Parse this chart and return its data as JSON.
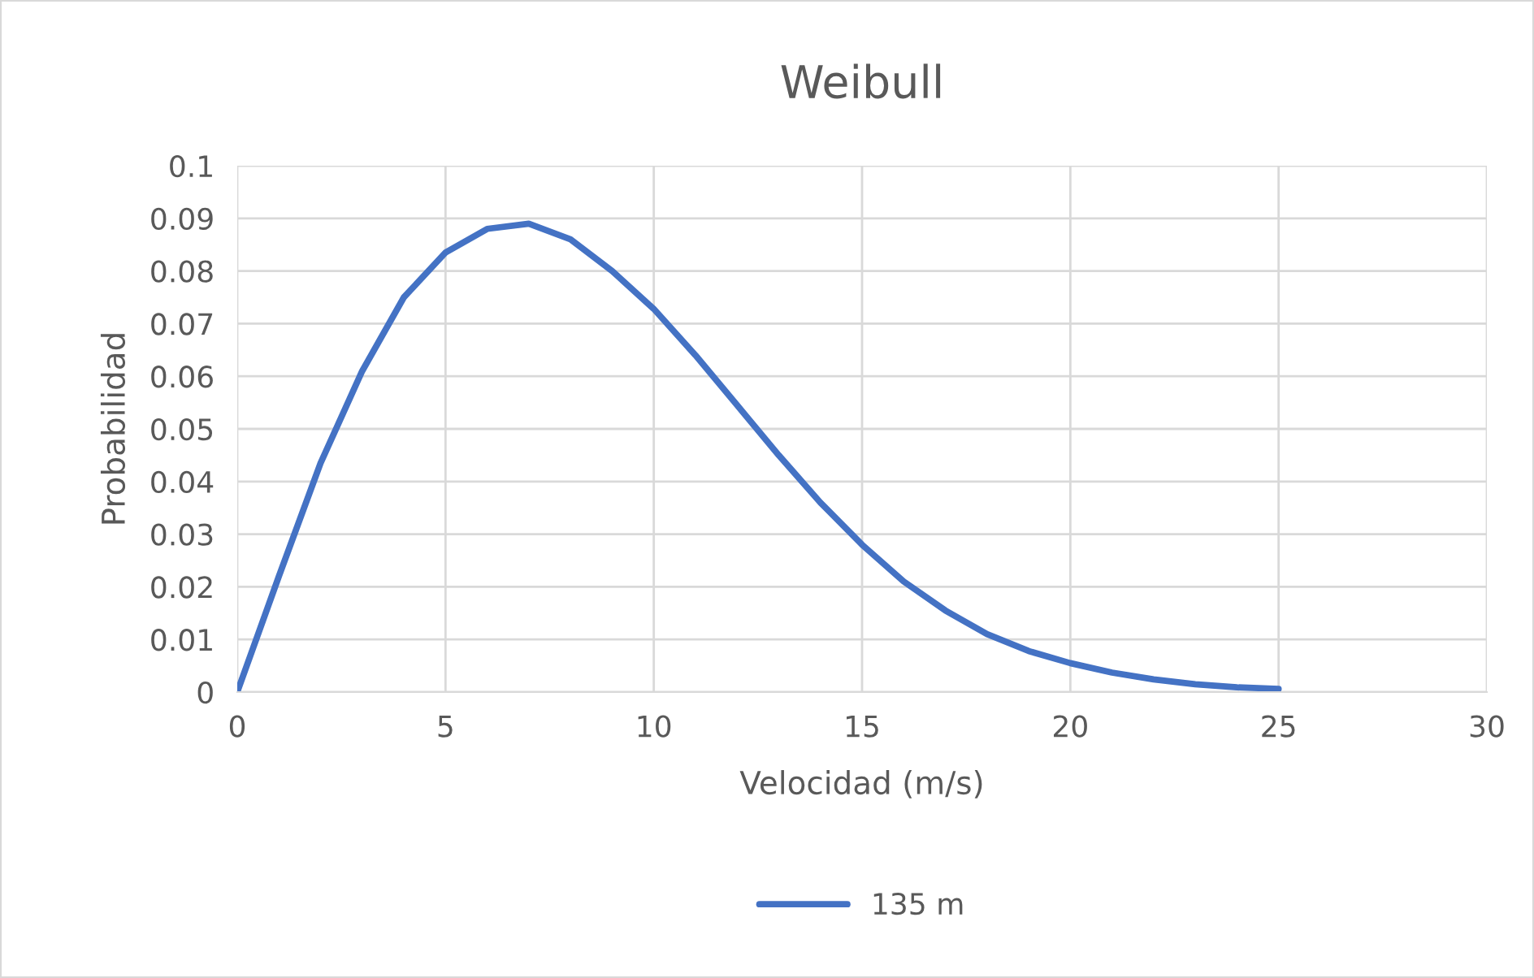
{
  "chart_data": {
    "type": "line",
    "title": "Weibull",
    "xlabel": "Velocidad (m/s)",
    "ylabel": "Probabilidad",
    "x": [
      0,
      1,
      2,
      3,
      4,
      5,
      6,
      7,
      8,
      9,
      10,
      11,
      12,
      13,
      14,
      15,
      16,
      17,
      18,
      19,
      20,
      21,
      22,
      23,
      24,
      25
    ],
    "series": [
      {
        "name": "135 m",
        "color": "#4472c4",
        "values": [
          0,
          0.022,
          0.0435,
          0.061,
          0.075,
          0.0835,
          0.088,
          0.089,
          0.086,
          0.08,
          0.0728,
          0.064,
          0.0545,
          0.045,
          0.036,
          0.028,
          0.021,
          0.0155,
          0.011,
          0.0078,
          0.0055,
          0.0037,
          0.0024,
          0.0015,
          0.0009,
          0.0006
        ]
      }
    ],
    "xlim": [
      0,
      30
    ],
    "xticks": [
      0,
      5,
      10,
      15,
      20,
      25,
      30
    ],
    "ylim": [
      0,
      0.1
    ],
    "yticks": [
      0,
      0.01,
      0.02,
      0.03,
      0.04,
      0.05,
      0.06,
      0.07,
      0.08,
      0.09,
      0.1
    ],
    "grid": true,
    "legend": "bottom",
    "marker": "none",
    "line_style": "solid"
  }
}
